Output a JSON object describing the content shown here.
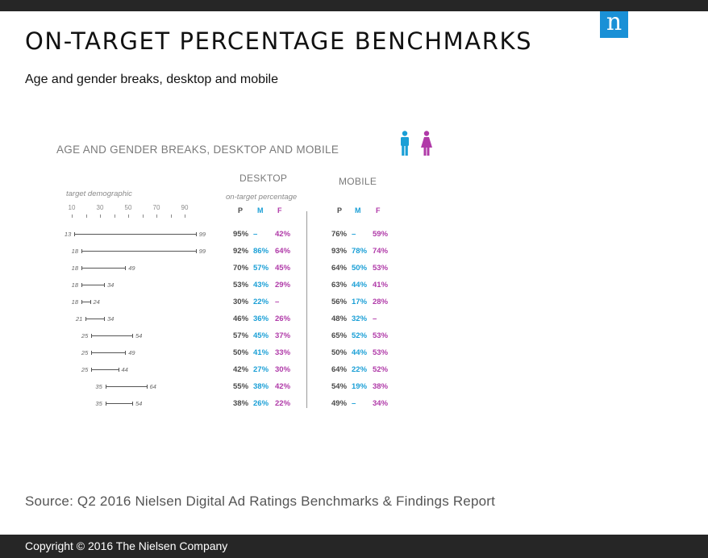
{
  "header": {
    "logo_letter": "n"
  },
  "title": "ON-TARGET PERCENTAGE BENCHMARKS",
  "subtitle": "Age and gender breaks, desktop and mobile",
  "figure": {
    "title": "AGE AND GENDER BREAKS, DESKTOP AND MOBILE",
    "target_label": "target demographic",
    "axis_ticks": [
      "10",
      "30",
      "50",
      "70",
      "90"
    ],
    "desktop_label": "DESKTOP",
    "desktop_sub": "on-target percentage",
    "mobile_label": "MOBILE",
    "pmf": {
      "p": "P",
      "m": "M",
      "f": "F"
    },
    "icons": [
      "male-icon",
      "female-icon"
    ],
    "colors": {
      "male": "#1a9fd6",
      "female": "#b03aa8",
      "persons": "#4a4a4a"
    },
    "rows": [
      {
        "lo": "13",
        "hi": "99",
        "lo_n": 13,
        "hi_n": 99,
        "d_p": "95%",
        "d_m": "–",
        "d_f": "42%",
        "m_p": "76%",
        "m_m": "–",
        "m_f": "59%"
      },
      {
        "lo": "18",
        "hi": "99",
        "lo_n": 18,
        "hi_n": 99,
        "d_p": "92%",
        "d_m": "86%",
        "d_f": "64%",
        "m_p": "93%",
        "m_m": "78%",
        "m_f": "74%"
      },
      {
        "lo": "18",
        "hi": "49",
        "lo_n": 18,
        "hi_n": 49,
        "d_p": "70%",
        "d_m": "57%",
        "d_f": "45%",
        "m_p": "64%",
        "m_m": "50%",
        "m_f": "53%"
      },
      {
        "lo": "18",
        "hi": "34",
        "lo_n": 18,
        "hi_n": 34,
        "d_p": "53%",
        "d_m": "43%",
        "d_f": "29%",
        "m_p": "63%",
        "m_m": "44%",
        "m_f": "41%"
      },
      {
        "lo": "18",
        "hi": "24",
        "lo_n": 18,
        "hi_n": 24,
        "d_p": "30%",
        "d_m": "22%",
        "d_f": "–",
        "m_p": "56%",
        "m_m": "17%",
        "m_f": "28%"
      },
      {
        "lo": "21",
        "hi": "34",
        "lo_n": 21,
        "hi_n": 34,
        "d_p": "46%",
        "d_m": "36%",
        "d_f": "26%",
        "m_p": "48%",
        "m_m": "32%",
        "m_f": "–"
      },
      {
        "lo": "25",
        "hi": "54",
        "lo_n": 25,
        "hi_n": 54,
        "d_p": "57%",
        "d_m": "45%",
        "d_f": "37%",
        "m_p": "65%",
        "m_m": "52%",
        "m_f": "53%"
      },
      {
        "lo": "25",
        "hi": "49",
        "lo_n": 25,
        "hi_n": 49,
        "d_p": "50%",
        "d_m": "41%",
        "d_f": "33%",
        "m_p": "50%",
        "m_m": "44%",
        "m_f": "53%"
      },
      {
        "lo": "25",
        "hi": "44",
        "lo_n": 25,
        "hi_n": 44,
        "d_p": "42%",
        "d_m": "27%",
        "d_f": "30%",
        "m_p": "64%",
        "m_m": "22%",
        "m_f": "52%"
      },
      {
        "lo": "35",
        "hi": "64",
        "lo_n": 35,
        "hi_n": 64,
        "d_p": "55%",
        "d_m": "38%",
        "d_f": "42%",
        "m_p": "54%",
        "m_m": "19%",
        "m_f": "38%"
      },
      {
        "lo": "35",
        "hi": "54",
        "lo_n": 35,
        "hi_n": 54,
        "d_p": "38%",
        "d_m": "26%",
        "d_f": "22%",
        "m_p": "49%",
        "m_m": "–",
        "m_f": "34%"
      }
    ]
  },
  "source": "Source: Q2 2016 Nielsen Digital Ad Ratings Benchmarks & Findings Report",
  "footer": {
    "copyright": "Copyright © 2016 The Nielsen Company"
  }
}
